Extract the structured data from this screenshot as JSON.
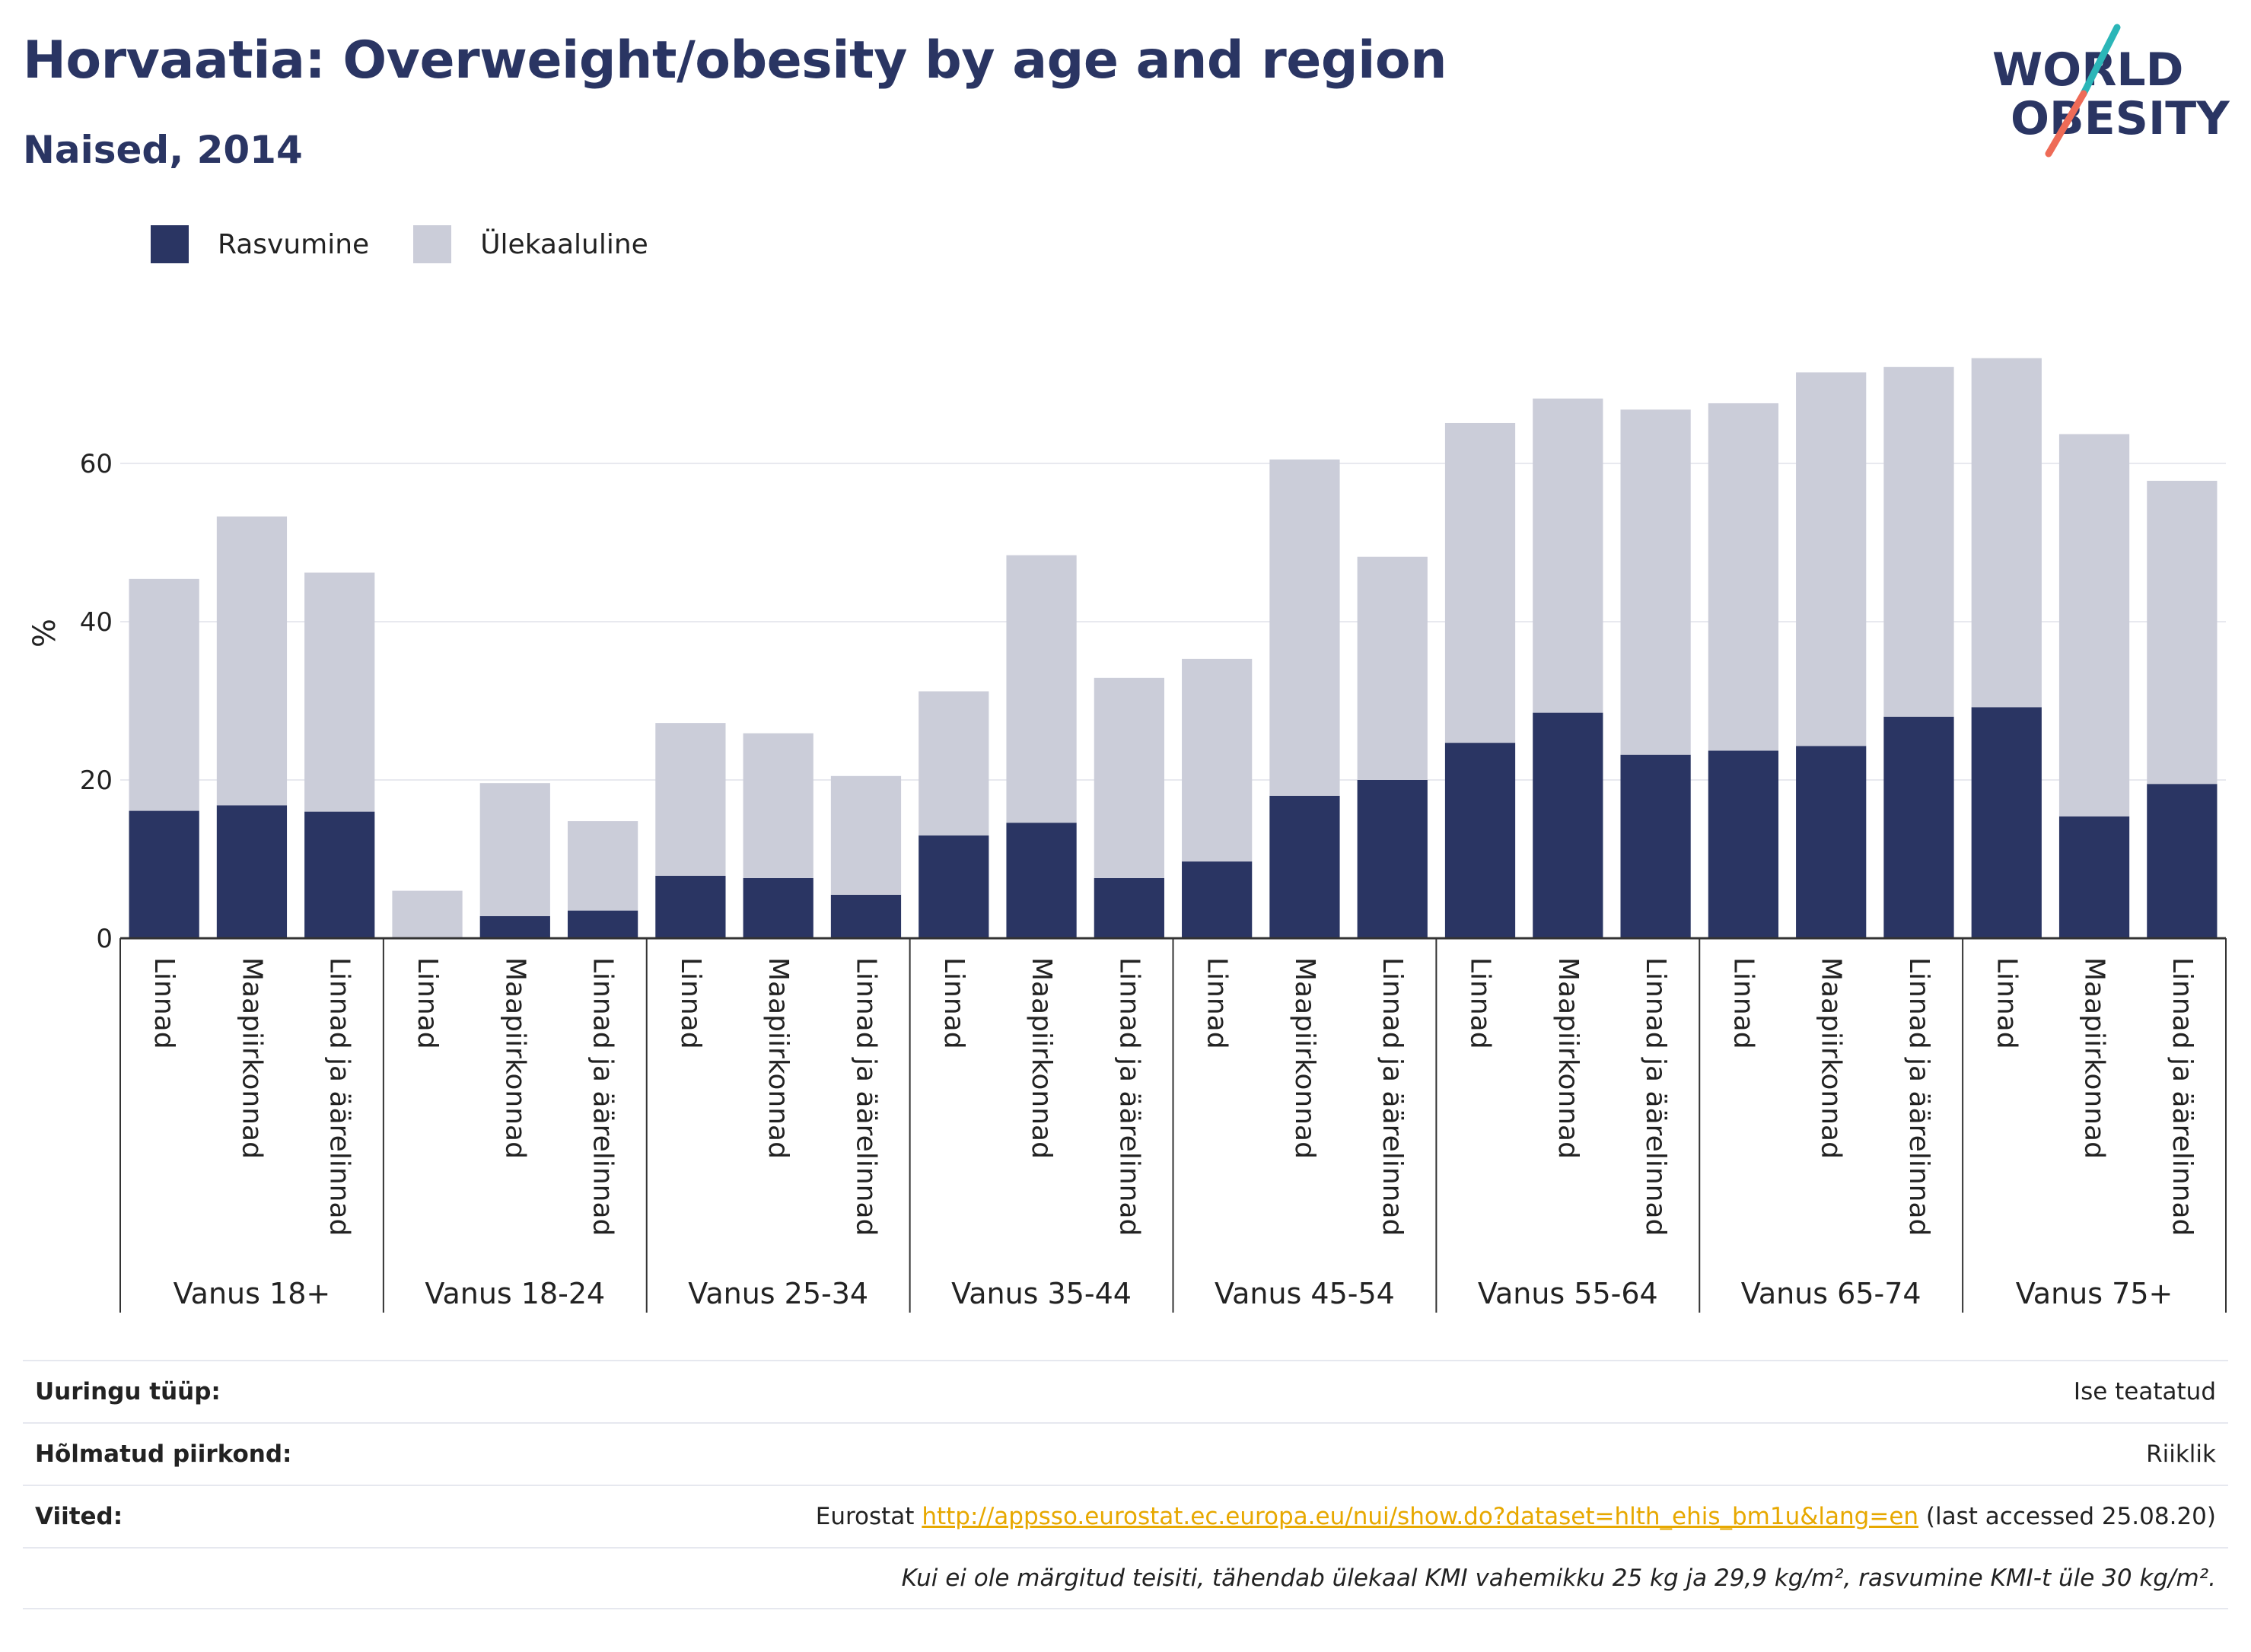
{
  "header": {
    "title": "Horvaatia: Overweight/obesity by age and region",
    "subtitle": "Naised, 2014"
  },
  "logo": {
    "line1": "WORLD",
    "line2": "OBESITY"
  },
  "colors": {
    "obesity": "#2a3563",
    "overweight": "#cbcdd9",
    "title": "#2a3563",
    "link": "#e7a800",
    "logo_teal": "#2bb6b8",
    "logo_coral": "#ee6b57"
  },
  "legend": [
    {
      "label": "Rasvumine",
      "color": "#2a3563"
    },
    {
      "label": "Ülekaaluline",
      "color": "#cbcdd9"
    }
  ],
  "chart_data": {
    "type": "bar",
    "stacked": true,
    "ylabel": "%",
    "ylim": [
      0,
      75
    ],
    "yticks": [
      0,
      20,
      40,
      60
    ],
    "grid": true,
    "legend_position": "top-left",
    "groups": [
      {
        "label": "Vanus 18+",
        "categories": [
          "Linnad",
          "Maapiirkonnad",
          "Linnad ja äärelinnad"
        ]
      },
      {
        "label": "Vanus 18-24",
        "categories": [
          "Linnad",
          "Maapiirkonnad",
          "Linnad ja äärelinnad"
        ]
      },
      {
        "label": "Vanus 25-34",
        "categories": [
          "Linnad",
          "Maapiirkonnad",
          "Linnad ja äärelinnad"
        ]
      },
      {
        "label": "Vanus 35-44",
        "categories": [
          "Linnad",
          "Maapiirkonnad",
          "Linnad ja äärelinnad"
        ]
      },
      {
        "label": "Vanus 45-54",
        "categories": [
          "Linnad",
          "Maapiirkonnad",
          "Linnad ja äärelinnad"
        ]
      },
      {
        "label": "Vanus 55-64",
        "categories": [
          "Linnad",
          "Maapiirkonnad",
          "Linnad ja äärelinnad"
        ]
      },
      {
        "label": "Vanus 65-74",
        "categories": [
          "Linnad",
          "Maapiirkonnad",
          "Linnad ja äärelinnad"
        ]
      },
      {
        "label": "Vanus 75+",
        "categories": [
          "Linnad",
          "Maapiirkonnad",
          "Linnad ja äärelinnad"
        ]
      }
    ],
    "series": [
      {
        "name": "Rasvumine",
        "values": [
          16.1,
          16.8,
          16.0,
          0,
          2.8,
          3.5,
          7.9,
          7.6,
          5.5,
          13.0,
          14.6,
          7.6,
          9.7,
          18.0,
          20.0,
          24.7,
          28.5,
          23.2,
          23.7,
          24.3,
          28.0,
          29.2,
          15.4,
          19.5
        ]
      },
      {
        "name": "Ülekaaluline",
        "values": [
          29.3,
          36.5,
          30.2,
          6.0,
          16.8,
          11.3,
          19.3,
          18.3,
          15.0,
          18.2,
          33.8,
          25.3,
          25.6,
          42.5,
          28.2,
          40.4,
          39.7,
          43.6,
          43.9,
          47.2,
          44.2,
          44.1,
          48.3,
          38.3
        ]
      }
    ]
  },
  "meta": {
    "rows": [
      {
        "label": "Uuringu tüüp:",
        "value": "Ise teatatud"
      },
      {
        "label": "Hõlmatud piirkond:",
        "value": "Riiklik"
      }
    ],
    "references": {
      "label": "Viited:",
      "prefix": "Eurostat",
      "link": "http://appsso.eurostat.ec.europa.eu/nui/show.do?dataset=hlth_ehis_bm1u&lang=en",
      "suffix": "(last accessed 25.08.20)"
    },
    "note": "Kui ei ole märgitud teisiti, tähendab ülekaal KMI vahemikku 25 kg ja 29,9 kg/m², rasvumine KMI-t üle 30 kg/m²."
  }
}
